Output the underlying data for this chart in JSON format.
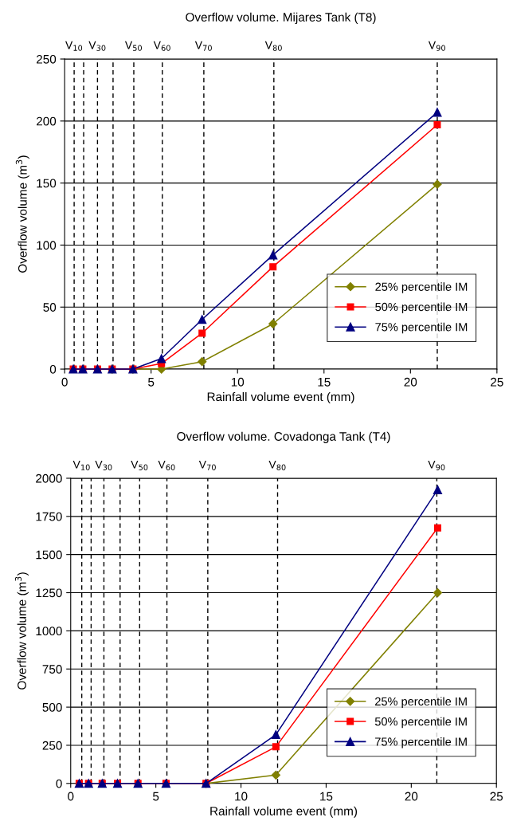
{
  "chart_data": [
    {
      "type": "line",
      "title": "Overflow volume. Mijares Tank (T8)",
      "xlabel": "Rainfall volume event (mm)",
      "ylabel": "Overflow volume (m$^{3}$)",
      "x": [
        0.5,
        1.05,
        1.9,
        2.75,
        3.95,
        5.6,
        7.95,
        12.05,
        21.55
      ],
      "series": [
        {
          "name": "25% percentile IM",
          "color": "#808000",
          "marker": "diamond",
          "values": [
            null,
            null,
            null,
            0,
            0,
            0,
            6,
            36.5,
            149
          ]
        },
        {
          "name": "50% percentile IM",
          "color": "#ff0000",
          "marker": "square",
          "values": [
            0,
            0,
            0,
            0,
            0,
            4.5,
            29,
            82.5,
            197
          ]
        },
        {
          "name": "75% percentile IM",
          "color": "#000080",
          "marker": "triangle",
          "values": [
            0,
            0,
            0,
            0,
            0,
            8.5,
            40,
            92,
            207
          ]
        }
      ],
      "xlim": [
        0,
        25
      ],
      "xticks": [
        0,
        5,
        10,
        15,
        20,
        25
      ],
      "ylim": [
        0,
        250
      ],
      "yticks": [
        0,
        50,
        100,
        150,
        200,
        250
      ],
      "grid": "y",
      "legend": "bottom right",
      "line_style": "solid",
      "ref_lines": [
        {
          "axis": "x",
          "value": 0.55,
          "label": "V$_{10}$",
          "color": "#000000",
          "line_style": "dashed"
        },
        {
          "axis": "x",
          "value": 1.1,
          "label": null,
          "color": "#000000",
          "line_style": "dashed"
        },
        {
          "axis": "x",
          "value": 1.9,
          "label": "V$_{30}$",
          "color": "#000000",
          "line_style": "dashed"
        },
        {
          "axis": "x",
          "value": 2.8,
          "label": null,
          "color": "#000000",
          "line_style": "dashed"
        },
        {
          "axis": "x",
          "value": 4.0,
          "label": "V$_{50}$",
          "color": "#000000",
          "line_style": "dashed"
        },
        {
          "axis": "x",
          "value": 5.65,
          "label": "V$_{60}$",
          "color": "#000000",
          "line_style": "dashed"
        },
        {
          "axis": "x",
          "value": 8.05,
          "label": "V$_{70}$",
          "color": "#000000",
          "line_style": "dashed"
        },
        {
          "axis": "x",
          "value": 12.1,
          "label": "V$_{80}$",
          "color": "#000000",
          "line_style": "dashed"
        },
        {
          "axis": "x",
          "value": 21.55,
          "label": "V$_{90}$",
          "color": "#000000",
          "line_style": "dashed"
        }
      ]
    },
    {
      "type": "line",
      "title": "Overflow volume. Covadonga Tank (T4)",
      "xlabel": "Rainfall volume event (mm)",
      "ylabel": "Overflow volume (m$^{3}$)",
      "x": [
        0.5,
        1.05,
        1.85,
        2.75,
        3.95,
        5.6,
        7.95,
        12.05,
        21.55
      ],
      "series": [
        {
          "name": "25% percentile IM",
          "color": "#808000",
          "marker": "diamond",
          "values": [
            null,
            null,
            null,
            null,
            null,
            null,
            0,
            55,
            1250
          ]
        },
        {
          "name": "50% percentile IM",
          "color": "#ff0000",
          "marker": "square",
          "values": [
            0,
            0,
            0,
            0,
            0,
            0,
            0,
            240,
            1675
          ]
        },
        {
          "name": "75% percentile IM",
          "color": "#000080",
          "marker": "triangle",
          "values": [
            0,
            0,
            0,
            0,
            0,
            0,
            0,
            320,
            1925
          ]
        }
      ],
      "xlim": [
        0,
        25
      ],
      "xticks": [
        0,
        5,
        10,
        15,
        20,
        25
      ],
      "ylim": [
        0,
        2000
      ],
      "yticks": [
        0,
        250,
        500,
        750,
        1000,
        1250,
        1500,
        1750,
        2000
      ],
      "grid": "y",
      "legend": "bottom right",
      "line_style": "solid",
      "ref_lines": [
        {
          "axis": "x",
          "value": 0.65,
          "label": "V$_{10}$",
          "color": "#000000",
          "line_style": "dashed"
        },
        {
          "axis": "x",
          "value": 1.2,
          "label": null,
          "color": "#000000",
          "line_style": "dashed"
        },
        {
          "axis": "x",
          "value": 1.95,
          "label": "V$_{30}$",
          "color": "#000000",
          "line_style": "dashed"
        },
        {
          "axis": "x",
          "value": 2.9,
          "label": null,
          "color": "#000000",
          "line_style": "dashed"
        },
        {
          "axis": "x",
          "value": 4.05,
          "label": "V$_{50}$",
          "color": "#000000",
          "line_style": "dashed"
        },
        {
          "axis": "x",
          "value": 5.65,
          "label": "V$_{60}$",
          "color": "#000000",
          "line_style": "dashed"
        },
        {
          "axis": "x",
          "value": 8.05,
          "label": "V$_{70}$",
          "color": "#000000",
          "line_style": "dashed"
        },
        {
          "axis": "x",
          "value": 12.15,
          "label": "V$_{80}$",
          "color": "#000000",
          "line_style": "dashed"
        },
        {
          "axis": "x",
          "value": 21.5,
          "label": "V$_{90}$",
          "color": "#000000",
          "line_style": "dashed"
        }
      ]
    }
  ]
}
